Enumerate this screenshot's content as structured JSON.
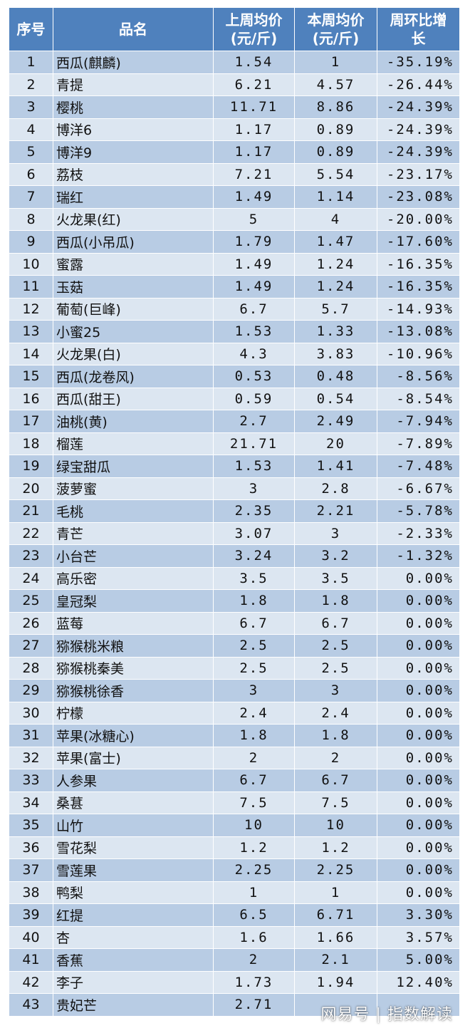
{
  "table": {
    "headers": [
      "序号",
      "品名",
      "上周均价\n(元/斤)",
      "本周均价\n(元/斤)",
      "周环比增\n长"
    ],
    "rows": [
      [
        "1",
        "西瓜(麒麟)",
        "1.54",
        "1",
        "-35.19%"
      ],
      [
        "2",
        "青提",
        "6.21",
        "4.57",
        "-26.44%"
      ],
      [
        "3",
        "樱桃",
        "11.71",
        "8.86",
        "-24.39%"
      ],
      [
        "4",
        "博洋6",
        "1.17",
        "0.89",
        "-24.39%"
      ],
      [
        "5",
        "博洋9",
        "1.17",
        "0.89",
        "-24.39%"
      ],
      [
        "6",
        "荔枝",
        "7.21",
        "5.54",
        "-23.17%"
      ],
      [
        "7",
        "瑞红",
        "1.49",
        "1.14",
        "-23.08%"
      ],
      [
        "8",
        "火龙果(红)",
        "5",
        "4",
        "-20.00%"
      ],
      [
        "9",
        "西瓜(小吊瓜)",
        "1.79",
        "1.47",
        "-17.60%"
      ],
      [
        "10",
        "蜜露",
        "1.49",
        "1.24",
        "-16.35%"
      ],
      [
        "11",
        "玉菇",
        "1.49",
        "1.24",
        "-16.35%"
      ],
      [
        "12",
        "葡萄(巨峰)",
        "6.7",
        "5.7",
        "-14.93%"
      ],
      [
        "13",
        "小蜜25",
        "1.53",
        "1.33",
        "-13.08%"
      ],
      [
        "14",
        "火龙果(白)",
        "4.3",
        "3.83",
        "-10.96%"
      ],
      [
        "15",
        "西瓜(龙卷风)",
        "0.53",
        "0.48",
        "-8.56%"
      ],
      [
        "16",
        "西瓜(甜王)",
        "0.59",
        "0.54",
        "-8.54%"
      ],
      [
        "17",
        "油桃(黄)",
        "2.7",
        "2.49",
        "-7.94%"
      ],
      [
        "18",
        "榴莲",
        "21.71",
        "20",
        "-7.89%"
      ],
      [
        "19",
        "绿宝甜瓜",
        "1.53",
        "1.41",
        "-7.48%"
      ],
      [
        "20",
        "菠萝蜜",
        "3",
        "2.8",
        "-6.67%"
      ],
      [
        "21",
        "毛桃",
        "2.35",
        "2.21",
        "-5.78%"
      ],
      [
        "22",
        "青芒",
        "3.07",
        "3",
        "-2.33%"
      ],
      [
        "23",
        "小台芒",
        "3.24",
        "3.2",
        "-1.32%"
      ],
      [
        "24",
        "高乐密",
        "3.5",
        "3.5",
        "0.00%"
      ],
      [
        "25",
        "皇冠梨",
        "1.8",
        "1.8",
        "0.00%"
      ],
      [
        "26",
        "蓝莓",
        "6.7",
        "6.7",
        "0.00%"
      ],
      [
        "27",
        "猕猴桃米粮",
        "2.5",
        "2.5",
        "0.00%"
      ],
      [
        "28",
        "猕猴桃秦美",
        "2.5",
        "2.5",
        "0.00%"
      ],
      [
        "29",
        "猕猴桃徐香",
        "3",
        "3",
        "0.00%"
      ],
      [
        "30",
        "柠檬",
        "2.4",
        "2.4",
        "0.00%"
      ],
      [
        "31",
        "苹果(冰糖心)",
        "1.8",
        "1.8",
        "0.00%"
      ],
      [
        "32",
        "苹果(富士)",
        "2",
        "2",
        "0.00%"
      ],
      [
        "33",
        "人参果",
        "6.7",
        "6.7",
        "0.00%"
      ],
      [
        "34",
        "桑葚",
        "7.5",
        "7.5",
        "0.00%"
      ],
      [
        "35",
        "山竹",
        "10",
        "10",
        "0.00%"
      ],
      [
        "36",
        "雪花梨",
        "1.2",
        "1.2",
        "0.00%"
      ],
      [
        "37",
        "雪莲果",
        "2.25",
        "2.25",
        "0.00%"
      ],
      [
        "38",
        "鸭梨",
        "1",
        "1",
        "0.00%"
      ],
      [
        "39",
        "红提",
        "6.5",
        "6.71",
        "3.30%"
      ],
      [
        "40",
        "杏",
        "1.6",
        "1.66",
        "3.57%"
      ],
      [
        "41",
        "香蕉",
        "2",
        "2.1",
        "5.00%"
      ],
      [
        "42",
        "李子",
        "1.73",
        "1.94",
        "12.40%"
      ],
      [
        "43",
        "贵妃芒",
        "2.71",
        "",
        ""
      ]
    ]
  },
  "watermark": {
    "brand": "网易号",
    "account": "指数解读"
  },
  "colors": {
    "header_bg": "#4f81bd",
    "row_odd": "#b8cce4",
    "row_even": "#dce6f1"
  }
}
